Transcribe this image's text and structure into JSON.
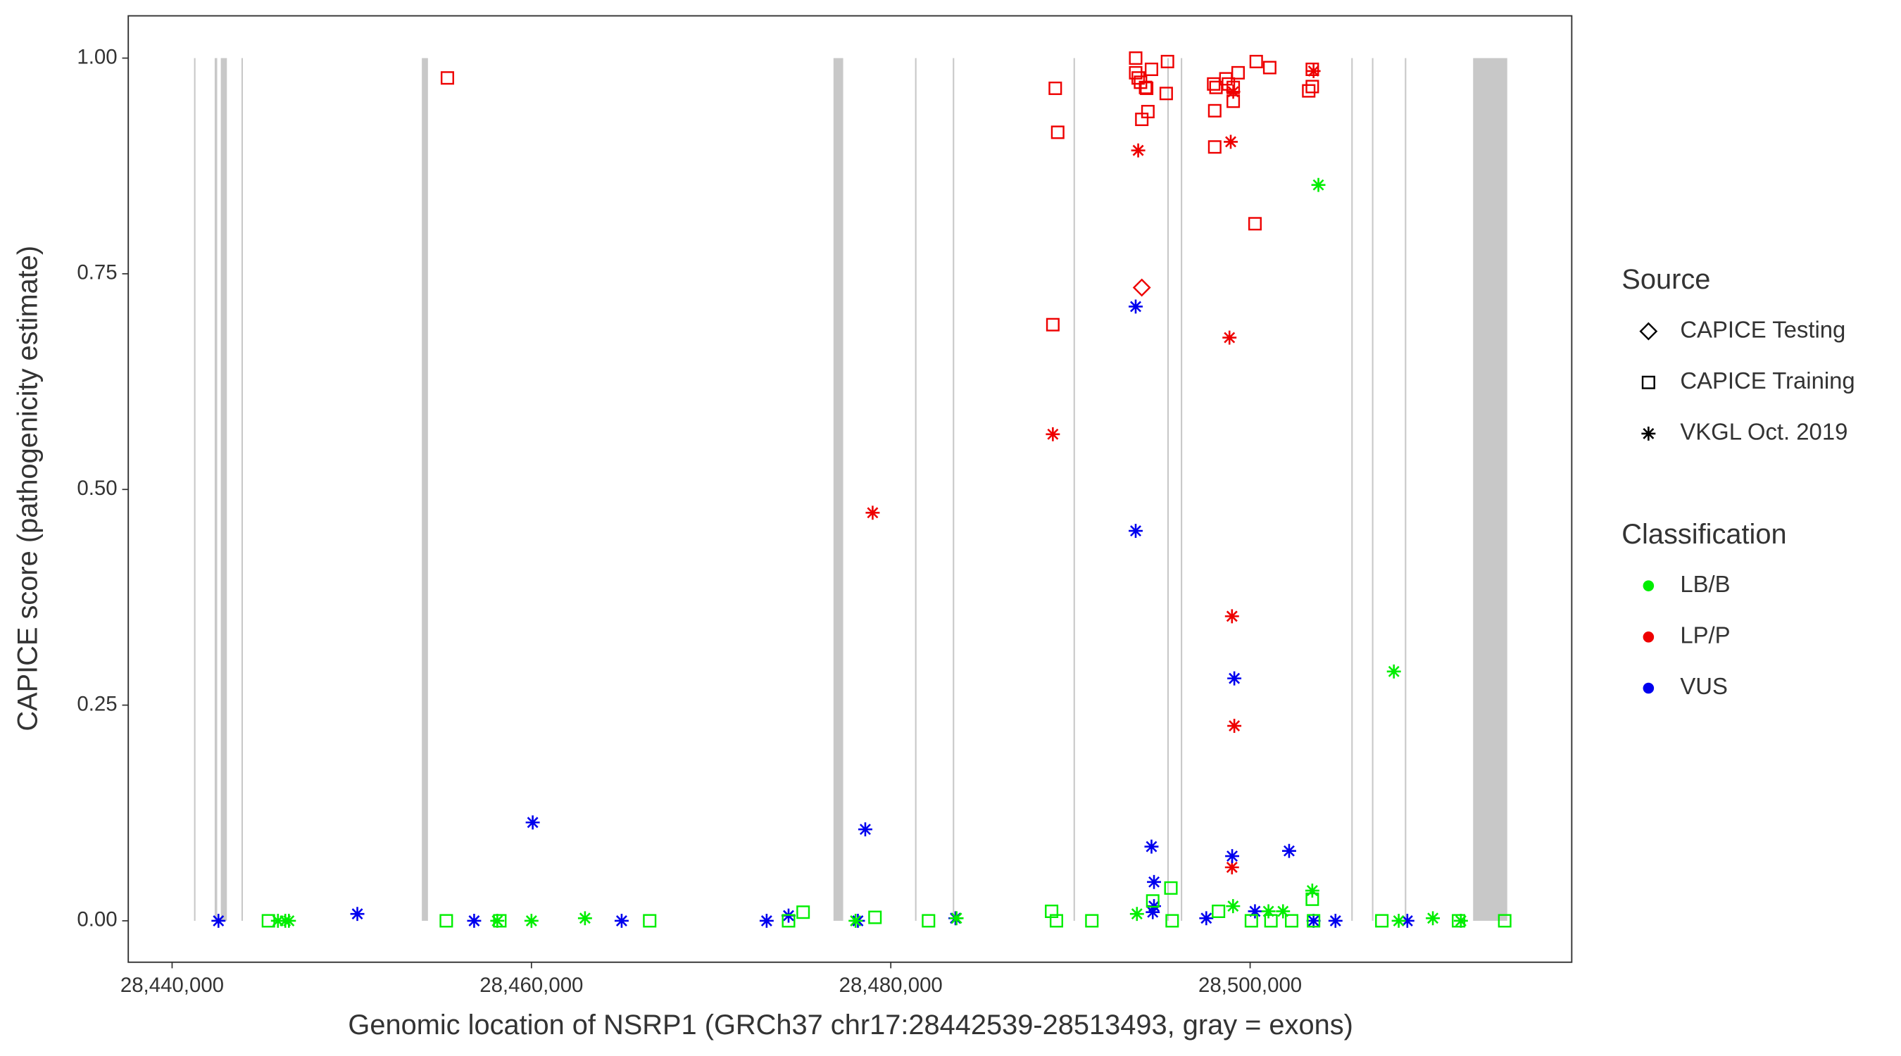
{
  "chart_data": {
    "type": "scatter",
    "x_label": "Genomic location of NSRP1 (GRCh37 chr17:28442539-28513493, gray = exons)",
    "y_label": "CAPICE score (pathogenicity estimate)",
    "xlim": [
      28437560,
      28517900
    ],
    "ylim": [
      -0.048,
      1.049
    ],
    "xticks": [
      {
        "value": 28440000,
        "label": "28,440,000"
      },
      {
        "value": 28460000,
        "label": "28,460,000"
      },
      {
        "value": 28480000,
        "label": "28,480,000"
      },
      {
        "value": 28500000,
        "label": "28,500,000"
      }
    ],
    "yticks": [
      {
        "value": 0,
        "label": "0.00"
      },
      {
        "value": 0.25,
        "label": "0.25"
      },
      {
        "value": 0.5,
        "label": "0.50"
      },
      {
        "value": 0.75,
        "label": "0.75"
      },
      {
        "value": 1,
        "label": "1.00"
      }
    ],
    "exon_color": "#c8c8c8",
    "exons": [
      [
        28441220,
        28441290
      ],
      [
        28442370,
        28442510
      ],
      [
        28442710,
        28443050
      ],
      [
        28443860,
        28443930
      ],
      [
        28453900,
        28454240
      ],
      [
        28476810,
        28477350
      ],
      [
        28481350,
        28481420
      ],
      [
        28483450,
        28483520
      ],
      [
        28490170,
        28490240
      ],
      [
        28495390,
        28495460
      ],
      [
        28496140,
        28496200
      ],
      [
        28505630,
        28505700
      ],
      [
        28506780,
        28506850
      ],
      [
        28508610,
        28508680
      ],
      [
        28512410,
        28514310
      ]
    ],
    "source_title": "Source",
    "sources": [
      {
        "name": "CAPICE Testing",
        "shape": "diamond"
      },
      {
        "name": "CAPICE Training",
        "shape": "square"
      },
      {
        "name": "VKGL Oct. 2019",
        "shape": "asterisk"
      }
    ],
    "classification_title": "Classification",
    "classifications": [
      {
        "name": "LB/B",
        "color": "#00ee00"
      },
      {
        "name": "LP/P",
        "color": "#ee0000"
      },
      {
        "name": "VUS",
        "color": "#0000ee"
      }
    ],
    "points": [
      [
        28455323,
        0.977,
        "CAPICE Training",
        "LP/P"
      ],
      [
        28489155,
        0.965,
        "CAPICE Training",
        "LP/P"
      ],
      [
        28489290,
        0.914,
        "CAPICE Training",
        "LP/P"
      ],
      [
        28489020,
        0.691,
        "CAPICE Training",
        "LP/P"
      ],
      [
        28493630,
        1.0,
        "CAPICE Training",
        "LP/P"
      ],
      [
        28493630,
        0.983,
        "CAPICE Training",
        "LP/P"
      ],
      [
        28493770,
        0.977,
        "CAPICE Training",
        "LP/P"
      ],
      [
        28493900,
        0.972,
        "CAPICE Training",
        "LP/P"
      ],
      [
        28493970,
        0.929,
        "CAPICE Training",
        "LP/P"
      ],
      [
        28494180,
        0.966,
        "CAPICE Training",
        "LP/P"
      ],
      [
        28494240,
        0.965,
        "CAPICE Training",
        "LP/P"
      ],
      [
        28494310,
        0.938,
        "CAPICE Training",
        "LP/P"
      ],
      [
        28494510,
        0.987,
        "CAPICE Training",
        "LP/P"
      ],
      [
        28495400,
        0.996,
        "CAPICE Training",
        "LP/P"
      ],
      [
        28495330,
        0.959,
        "CAPICE Training",
        "LP/P"
      ],
      [
        28497970,
        0.97,
        "CAPICE Training",
        "LP/P"
      ],
      [
        28498100,
        0.966,
        "CAPICE Training",
        "LP/P"
      ],
      [
        28498030,
        0.939,
        "CAPICE Training",
        "LP/P"
      ],
      [
        28498030,
        0.897,
        "CAPICE Training",
        "LP/P"
      ],
      [
        28498650,
        0.976,
        "CAPICE Training",
        "LP/P"
      ],
      [
        28498790,
        0.97,
        "CAPICE Training",
        "LP/P"
      ],
      [
        28499060,
        0.966,
        "CAPICE Training",
        "LP/P"
      ],
      [
        28499060,
        0.95,
        "CAPICE Training",
        "LP/P"
      ],
      [
        28499330,
        0.983,
        "CAPICE Training",
        "LP/P"
      ],
      [
        28500270,
        0.808,
        "CAPICE Training",
        "LP/P"
      ],
      [
        28500340,
        0.996,
        "CAPICE Training",
        "LP/P"
      ],
      [
        28501090,
        0.989,
        "CAPICE Training",
        "LP/P"
      ],
      [
        28503260,
        0.962,
        "CAPICE Training",
        "LP/P"
      ],
      [
        28503460,
        0.987,
        "CAPICE Training",
        "LP/P"
      ],
      [
        28503460,
        0.967,
        "CAPICE Training",
        "LP/P"
      ],
      [
        28493970,
        0.734,
        "CAPICE Testing",
        "LP/P"
      ],
      [
        28493770,
        0.893,
        "VKGL Oct. 2019",
        "LP/P"
      ],
      [
        28498920,
        0.903,
        "VKGL Oct. 2019",
        "LP/P"
      ],
      [
        28499060,
        0.961,
        "VKGL Oct. 2019",
        "LP/P"
      ],
      [
        28503530,
        0.985,
        "VKGL Oct. 2019",
        "LP/P"
      ],
      [
        28498850,
        0.676,
        "VKGL Oct. 2019",
        "LP/P"
      ],
      [
        28489020,
        0.564,
        "VKGL Oct. 2019",
        "LP/P"
      ],
      [
        28478990,
        0.473,
        "VKGL Oct. 2019",
        "LP/P"
      ],
      [
        28498990,
        0.353,
        "VKGL Oct. 2019",
        "LP/P"
      ],
      [
        28499120,
        0.226,
        "VKGL Oct. 2019",
        "LP/P"
      ],
      [
        28498990,
        0.062,
        "VKGL Oct. 2019",
        "LP/P"
      ],
      [
        28442580,
        0.0,
        "VKGL Oct. 2019",
        "VUS"
      ],
      [
        28450310,
        0.008,
        "VKGL Oct. 2019",
        "VUS"
      ],
      [
        28456810,
        0.0,
        "VKGL Oct. 2019",
        "VUS"
      ],
      [
        28460070,
        0.114,
        "VKGL Oct. 2019",
        "VUS"
      ],
      [
        28465020,
        0.0,
        "VKGL Oct. 2019",
        "VUS"
      ],
      [
        28473090,
        0.0,
        "VKGL Oct. 2019",
        "VUS"
      ],
      [
        28474310,
        0.006,
        "VKGL Oct. 2019",
        "VUS"
      ],
      [
        28478580,
        0.106,
        "VKGL Oct. 2019",
        "VUS"
      ],
      [
        28478170,
        0.0,
        "VKGL Oct. 2019",
        "VUS"
      ],
      [
        28483600,
        0.003,
        "VKGL Oct. 2019",
        "VUS"
      ],
      [
        28493630,
        0.712,
        "VKGL Oct. 2019",
        "VUS"
      ],
      [
        28493630,
        0.452,
        "VKGL Oct. 2019",
        "VUS"
      ],
      [
        28494510,
        0.086,
        "VKGL Oct. 2019",
        "VUS"
      ],
      [
        28494650,
        0.045,
        "VKGL Oct. 2019",
        "VUS"
      ],
      [
        28494650,
        0.017,
        "VKGL Oct. 2019",
        "VUS"
      ],
      [
        28494580,
        0.01,
        "VKGL Oct. 2019",
        "VUS"
      ],
      [
        28497560,
        0.003,
        "VKGL Oct. 2019",
        "VUS"
      ],
      [
        28499000,
        0.075,
        "VKGL Oct. 2019",
        "VUS"
      ],
      [
        28499120,
        0.281,
        "VKGL Oct. 2019",
        "VUS"
      ],
      [
        28500270,
        0.011,
        "VKGL Oct. 2019",
        "VUS"
      ],
      [
        28502170,
        0.081,
        "VKGL Oct. 2019",
        "VUS"
      ],
      [
        28503530,
        0.0,
        "VKGL Oct. 2019",
        "VUS"
      ],
      [
        28504750,
        0.0,
        "VKGL Oct. 2019",
        "VUS"
      ],
      [
        28508750,
        0.0,
        "VKGL Oct. 2019",
        "VUS"
      ],
      [
        28445890,
        0.0,
        "VKGL Oct. 2019",
        "LB/B"
      ],
      [
        28446300,
        0.0,
        "VKGL Oct. 2019",
        "LB/B"
      ],
      [
        28446500,
        0.0,
        "VKGL Oct. 2019",
        "LB/B"
      ],
      [
        28458100,
        0.0,
        "VKGL Oct. 2019",
        "LB/B"
      ],
      [
        28460000,
        0.0,
        "VKGL Oct. 2019",
        "LB/B"
      ],
      [
        28462980,
        0.003,
        "VKGL Oct. 2019",
        "LB/B"
      ],
      [
        28478040,
        0.0,
        "VKGL Oct. 2019",
        "LB/B"
      ],
      [
        28483660,
        0.003,
        "VKGL Oct. 2019",
        "LB/B"
      ],
      [
        28493700,
        0.008,
        "VKGL Oct. 2019",
        "LB/B"
      ],
      [
        28499050,
        0.017,
        "VKGL Oct. 2019",
        "LB/B"
      ],
      [
        28501020,
        0.011,
        "VKGL Oct. 2019",
        "LB/B"
      ],
      [
        28501830,
        0.011,
        "VKGL Oct. 2019",
        "LB/B"
      ],
      [
        28503460,
        0.035,
        "VKGL Oct. 2019",
        "LB/B"
      ],
      [
        28503800,
        0.853,
        "VKGL Oct. 2019",
        "LB/B"
      ],
      [
        28508000,
        0.289,
        "VKGL Oct. 2019",
        "LB/B"
      ],
      [
        28508270,
        0.0,
        "VKGL Oct. 2019",
        "LB/B"
      ],
      [
        28510170,
        0.003,
        "VKGL Oct. 2019",
        "LB/B"
      ],
      [
        28511730,
        0.0,
        "VKGL Oct. 2019",
        "LB/B"
      ],
      [
        28445360,
        0.0,
        "CAPICE Training",
        "LB/B"
      ],
      [
        28455260,
        0.0,
        "CAPICE Training",
        "LB/B"
      ],
      [
        28458240,
        0.0,
        "CAPICE Training",
        "LB/B"
      ],
      [
        28466580,
        0.0,
        "CAPICE Training",
        "LB/B"
      ],
      [
        28474310,
        0.0,
        "CAPICE Training",
        "LB/B"
      ],
      [
        28475120,
        0.01,
        "CAPICE Training",
        "LB/B"
      ],
      [
        28479120,
        0.004,
        "CAPICE Training",
        "LB/B"
      ],
      [
        28482100,
        0.0,
        "CAPICE Training",
        "LB/B"
      ],
      [
        28488950,
        0.011,
        "CAPICE Training",
        "LB/B"
      ],
      [
        28489220,
        0.0,
        "CAPICE Training",
        "LB/B"
      ],
      [
        28491190,
        0.0,
        "CAPICE Training",
        "LB/B"
      ],
      [
        28494580,
        0.023,
        "CAPICE Training",
        "LB/B"
      ],
      [
        28495590,
        0.038,
        "CAPICE Training",
        "LB/B"
      ],
      [
        28495660,
        0.0,
        "CAPICE Training",
        "LB/B"
      ],
      [
        28498240,
        0.011,
        "CAPICE Training",
        "LB/B"
      ],
      [
        28500070,
        0.0,
        "CAPICE Training",
        "LB/B"
      ],
      [
        28501160,
        0.0,
        "CAPICE Training",
        "LB/B"
      ],
      [
        28502310,
        0.0,
        "CAPICE Training",
        "LB/B"
      ],
      [
        28503460,
        0.025,
        "CAPICE Training",
        "LB/B"
      ],
      [
        28503530,
        0.0,
        "CAPICE Training",
        "LB/B"
      ],
      [
        28507330,
        0.0,
        "CAPICE Training",
        "LB/B"
      ],
      [
        28511600,
        0.0,
        "CAPICE Training",
        "LB/B"
      ],
      [
        28514170,
        0.0,
        "CAPICE Training",
        "LB/B"
      ]
    ]
  }
}
